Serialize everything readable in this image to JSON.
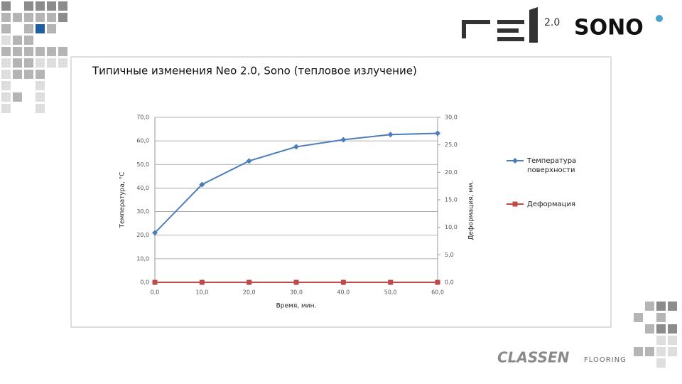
{
  "branding": {
    "version": "2.0",
    "sono": "SONO",
    "classen": "CLASSEN",
    "flooring": "FLOORING"
  },
  "chart_data": {
    "type": "line",
    "title": "Типичные изменения Neo 2.0, Sono (тепловое излучение)",
    "xlabel": "Время, мин.",
    "ylabel": "Температура, °C",
    "y2label": "Деформация, мм.",
    "x": [
      0,
      10,
      20,
      30,
      40,
      50,
      60
    ],
    "xlim": [
      0,
      60
    ],
    "xticks": [
      {
        "value": 0,
        "label": "0,0"
      },
      {
        "value": 10,
        "label": "10,0"
      },
      {
        "value": 20,
        "label": "20,0"
      },
      {
        "value": 30,
        "label": "30,0"
      },
      {
        "value": 40,
        "label": "40,0"
      },
      {
        "value": 50,
        "label": "50,0"
      },
      {
        "value": 60,
        "label": "60,0"
      }
    ],
    "ylim": [
      0,
      70
    ],
    "yticks": [
      {
        "value": 0,
        "label": "0,0"
      },
      {
        "value": 10,
        "label": "10,0"
      },
      {
        "value": 20,
        "label": "20,0"
      },
      {
        "value": 30,
        "label": "30,0"
      },
      {
        "value": 40,
        "label": "40,0"
      },
      {
        "value": 50,
        "label": "50,0"
      },
      {
        "value": 60,
        "label": "60,0"
      },
      {
        "value": 70,
        "label": "70,0"
      }
    ],
    "y2lim": [
      0,
      30
    ],
    "y2ticks": [
      {
        "value": 0,
        "label": "0,0"
      },
      {
        "value": 5,
        "label": "5,0"
      },
      {
        "value": 10,
        "label": "10,0"
      },
      {
        "value": 15,
        "label": "15,0"
      },
      {
        "value": 20,
        "label": "20,0"
      },
      {
        "value": 25,
        "label": "25,0"
      },
      {
        "value": 30,
        "label": "30,0"
      }
    ],
    "grid": true,
    "legend": "right",
    "series": [
      {
        "name": "Температура поверхности",
        "color": "#4a7ebb",
        "marker": "diamond",
        "values": [
          21,
          41.5,
          51.5,
          57.5,
          60.5,
          62.7,
          63.2
        ]
      },
      {
        "name": "Деформация",
        "color": "#be4b48",
        "marker": "square",
        "axis": "y2",
        "values": [
          0,
          0,
          0,
          0,
          0,
          0,
          0
        ]
      }
    ]
  }
}
